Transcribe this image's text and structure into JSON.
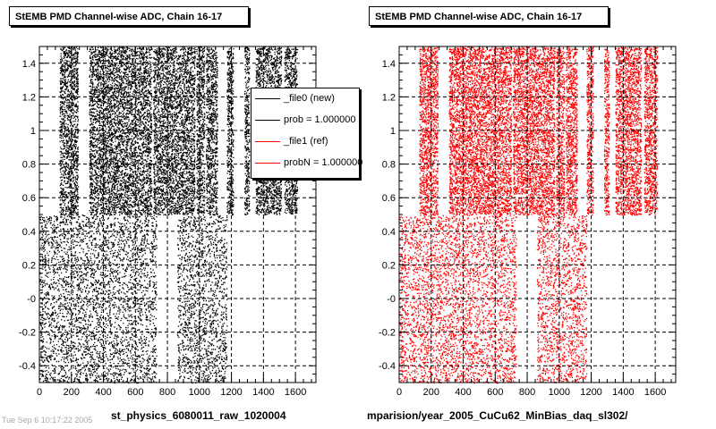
{
  "left": {
    "title": "StEMB PMD Channel-wise ADC, Chain 16-17",
    "filename": "st_physics_6080011_raw_1020004",
    "legend": [
      {
        "label": "_file0 (new)",
        "color": "#000000"
      },
      {
        "label": "prob = 1.000000",
        "color": "#000000"
      },
      {
        "label": "_file1 (ref)",
        "color": "#ff0000"
      },
      {
        "label": "probN = 1.000000",
        "color": "#ff0000"
      }
    ]
  },
  "right": {
    "title": "StEMB PMD Channel-wise ADC, Chain 16-17",
    "filename": "mparision/year_2005_CuCu62_MinBias_daq_sl302/"
  },
  "footer_ghost": "Tue Sep  6 10:17:22 2005",
  "chart_data": [
    {
      "type": "scatter",
      "title": "StEMB PMD Channel-wise ADC, Chain 16-17",
      "xlabel": "",
      "ylabel": "",
      "xlim": [
        0,
        1728
      ],
      "ylim": [
        -0.5,
        1.5
      ],
      "x_ticks": [
        0,
        200,
        400,
        600,
        800,
        1000,
        1200,
        1400,
        1600
      ],
      "y_ticks": [
        "-0.4",
        "-0.2",
        "-0",
        "0.2",
        "0.4",
        "0.6",
        "0.8",
        "1",
        "1.2",
        "1.4"
      ],
      "grid": true,
      "series": [
        {
          "color": "#000000",
          "upper_bands": [
            [
              125,
              240
            ],
            [
              310,
              700
            ],
            [
              710,
              970
            ],
            [
              980,
              1030
            ],
            [
              1040,
              1110
            ],
            [
              1170,
              1210
            ],
            [
              1280,
              1310
            ],
            [
              1350,
              1510
            ],
            [
              1530,
              1610
            ]
          ],
          "lower_bands": [
            [
              0,
              730
            ],
            [
              860,
              1170
            ]
          ]
        }
      ]
    },
    {
      "type": "scatter",
      "title": "StEMB PMD Channel-wise ADC, Chain 16-17",
      "xlabel": "",
      "ylabel": "",
      "xlim": [
        0,
        1728
      ],
      "ylim": [
        -0.5,
        1.5
      ],
      "x_ticks": [
        0,
        200,
        400,
        600,
        800,
        1000,
        1200,
        1400,
        1600
      ],
      "y_ticks": [
        "-0.4",
        "-0.2",
        "-0",
        "0.2",
        "0.4",
        "0.6",
        "0.8",
        "1",
        "1.2",
        "1.4"
      ],
      "grid": true,
      "series": [
        {
          "color": "#ff0000",
          "upper_bands": [
            [
              125,
              240
            ],
            [
              310,
              700
            ],
            [
              710,
              970
            ],
            [
              980,
              1030
            ],
            [
              1040,
              1110
            ],
            [
              1170,
              1210
            ],
            [
              1280,
              1310
            ],
            [
              1350,
              1510
            ],
            [
              1530,
              1610
            ]
          ],
          "lower_bands": [
            [
              0,
              730
            ],
            [
              860,
              1170
            ]
          ]
        }
      ]
    }
  ]
}
